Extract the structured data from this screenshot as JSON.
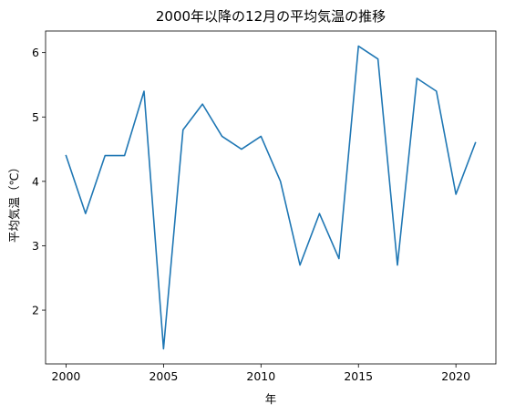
{
  "chart_data": {
    "type": "line",
    "title": "2000年以降の12月の平均気温の推移",
    "xlabel": "年",
    "ylabel": "平均気温（℃）",
    "x": [
      2000,
      2001,
      2002,
      2003,
      2004,
      2005,
      2006,
      2007,
      2008,
      2009,
      2010,
      2011,
      2012,
      2013,
      2014,
      2015,
      2016,
      2017,
      2018,
      2019,
      2020,
      2021
    ],
    "series": [
      {
        "values": [
          4.4,
          3.5,
          4.4,
          4.4,
          5.4,
          1.4,
          4.8,
          5.2,
          4.7,
          4.5,
          4.7,
          4.0,
          2.7,
          3.5,
          2.8,
          6.1,
          5.9,
          2.7,
          5.6,
          5.4,
          3.8,
          4.6
        ],
        "color": "#1f77b4"
      }
    ],
    "xticks": [
      "2000",
      "2005",
      "2010",
      "2015",
      "2020"
    ],
    "yticks": [
      "2",
      "3",
      "4",
      "5",
      "6"
    ],
    "xlim": [
      1998.95,
      2022.05
    ],
    "ylim": [
      1.165,
      6.335
    ],
    "grid": false,
    "legend": "none"
  }
}
